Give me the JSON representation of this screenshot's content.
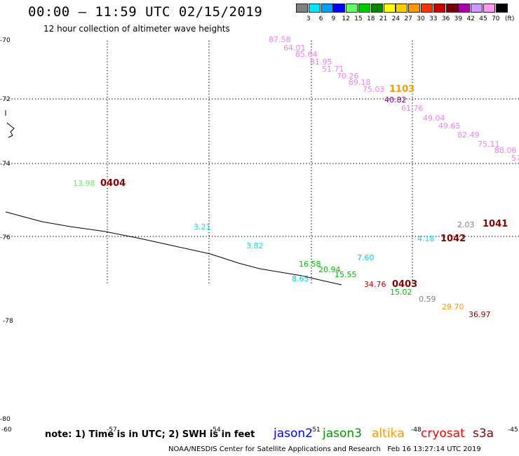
{
  "title": "00:00 – 11:59 UTC 02/15/2019",
  "subtitle": "12 hour collection of altimeter wave heights",
  "legend": {
    "unit": "(ft)",
    "colors": [
      "#808080",
      "#00e5ff",
      "#00a2ff",
      "#0000ff",
      "#66ff66",
      "#00cc00",
      "#008800",
      "#ffff00",
      "#ffcc00",
      "#ff9900",
      "#ff3300",
      "#cc0000",
      "#7a0000",
      "#aa00aa",
      "#cc99ff",
      "#ff99ee",
      "#000000"
    ],
    "labels": [
      "3",
      "6",
      "9",
      "12",
      "15",
      "18",
      "21",
      "24",
      "27",
      "30",
      "33",
      "36",
      "39",
      "42",
      "45",
      "70"
    ]
  },
  "lat_labels": [
    "-70",
    "-72",
    "-74",
    "-76",
    "-78",
    "-80"
  ],
  "lon_labels": [
    "-60",
    "-57",
    "-54",
    "-51",
    "-48",
    "-45"
  ],
  "points": [
    {
      "text": "87.58",
      "color": "#ee82ee"
    },
    {
      "text": "64.01",
      "color": "#ee82ee"
    },
    {
      "text": "85.64",
      "color": "#ee82ee"
    },
    {
      "text": "81.95",
      "color": "#ee82ee"
    },
    {
      "text": "51.71",
      "color": "#ee82ee"
    },
    {
      "text": "70.26",
      "color": "#ee82ee"
    },
    {
      "text": "89.18",
      "color": "#ee82ee"
    },
    {
      "text": "75.03",
      "color": "#ee82ee"
    },
    {
      "text": "40.82",
      "color": "#800080"
    },
    {
      "text": "61.76",
      "color": "#ee82ee"
    },
    {
      "text": "49.04",
      "color": "#ee82ee"
    },
    {
      "text": "49.65",
      "color": "#ee82ee"
    },
    {
      "text": "82.49",
      "color": "#ee82ee"
    },
    {
      "text": "75.11",
      "color": "#ee82ee"
    },
    {
      "text": "88.06",
      "color": "#ee82ee"
    },
    {
      "text": "57",
      "color": "#ee82ee"
    },
    {
      "text": "13.98",
      "color": "#66ee66"
    },
    {
      "text": "3.21",
      "color": "#00e5ee"
    },
    {
      "text": "3.82",
      "color": "#00e5ee"
    },
    {
      "text": "7.60",
      "color": "#00ccee"
    },
    {
      "text": "4.18",
      "color": "#00e5ee"
    },
    {
      "text": "2.03",
      "color": "#808080"
    },
    {
      "text": "16.58",
      "color": "#00bb00"
    },
    {
      "text": "20.94",
      "color": "#00bb00"
    },
    {
      "text": "15.55",
      "color": "#00bb00"
    },
    {
      "text": "8.65",
      "color": "#00ccee"
    },
    {
      "text": "34.76",
      "color": "#cc0000"
    },
    {
      "text": "15.02",
      "color": "#00bb00"
    },
    {
      "text": "0.59",
      "color": "#808080"
    },
    {
      "text": "29.70",
      "color": "#ff9900"
    },
    {
      "text": "36.97",
      "color": "#880000"
    }
  ],
  "times": [
    {
      "text": "1103",
      "color": "#ff9900"
    },
    {
      "text": "0404",
      "color": "#880000"
    },
    {
      "text": "1041",
      "color": "#880000"
    },
    {
      "text": "1042",
      "color": "#880000"
    },
    {
      "text": "0403",
      "color": "#880000"
    }
  ],
  "note": "note: 1) Time is in UTC; 2) SWH is in feet",
  "missions": [
    {
      "name": "jason2",
      "color": "#0000ff"
    },
    {
      "name": "jason3",
      "color": "#009900"
    },
    {
      "name": "altika",
      "color": "#ff9900"
    },
    {
      "name": "cryosat",
      "color": "#ff0000"
    },
    {
      "name": "s3a",
      "color": "#880000"
    }
  ],
  "credit": "NOAA/NESDIS Center for Satellite Applications and Research   Feb 16 13:27:14 UTC 2019"
}
